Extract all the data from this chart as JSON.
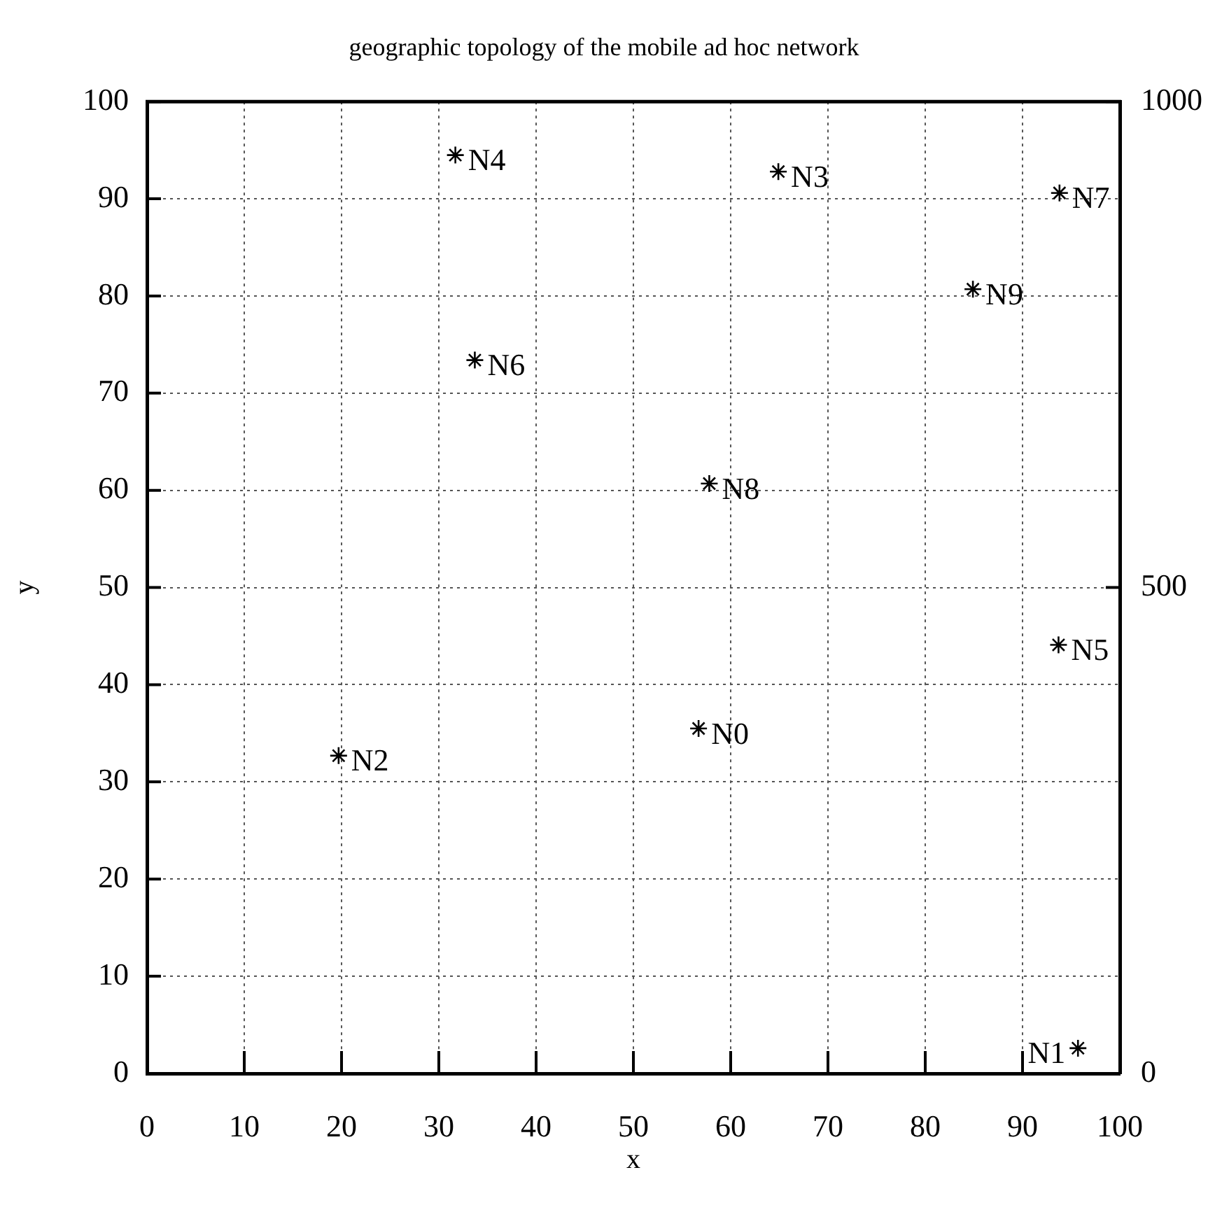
{
  "chart_data": {
    "type": "scatter",
    "title": "geographic topology of the mobile ad hoc network",
    "xlabel": "x",
    "ylabel": "y",
    "x": [
      56.7,
      95.7,
      19.7,
      64.9,
      31.7,
      93.7,
      33.7,
      93.8,
      57.8,
      84.9
    ],
    "series": [
      {
        "color": "#000000",
        "values": [
          35.5,
          2.6,
          32.7,
          92.8,
          94.5,
          44.1,
          73.4,
          90.6,
          60.7,
          80.7
        ]
      }
    ],
    "xlim": [
      0,
      100
    ],
    "xticks": [
      0,
      10,
      20,
      30,
      40,
      50,
      60,
      70,
      80,
      90,
      100
    ],
    "ylim": [
      0,
      100
    ],
    "yticks": [
      0,
      10,
      20,
      30,
      40,
      50,
      60,
      70,
      80,
      90,
      100
    ],
    "y2lim": [
      0,
      1000
    ],
    "y2ticks": [
      0,
      500,
      1000
    ],
    "grid": true,
    "legend": false,
    "marker": "cross",
    "annotations": [
      {
        "text": "N0",
        "x": 56.7,
        "y": 35.5
      },
      {
        "text": "N1",
        "x": 95.7,
        "y": 2.6
      },
      {
        "text": "N2",
        "x": 19.7,
        "y": 32.7
      },
      {
        "text": "N3",
        "x": 64.9,
        "y": 92.8
      },
      {
        "text": "N4",
        "x": 31.7,
        "y": 94.5
      },
      {
        "text": "N5",
        "x": 93.7,
        "y": 44.1
      },
      {
        "text": "N6",
        "x": 33.7,
        "y": 73.4
      },
      {
        "text": "N7",
        "x": 93.8,
        "y": 90.6
      },
      {
        "text": "N8",
        "x": 57.8,
        "y": 60.7
      },
      {
        "text": "N9",
        "x": 84.9,
        "y": 80.7
      }
    ]
  }
}
